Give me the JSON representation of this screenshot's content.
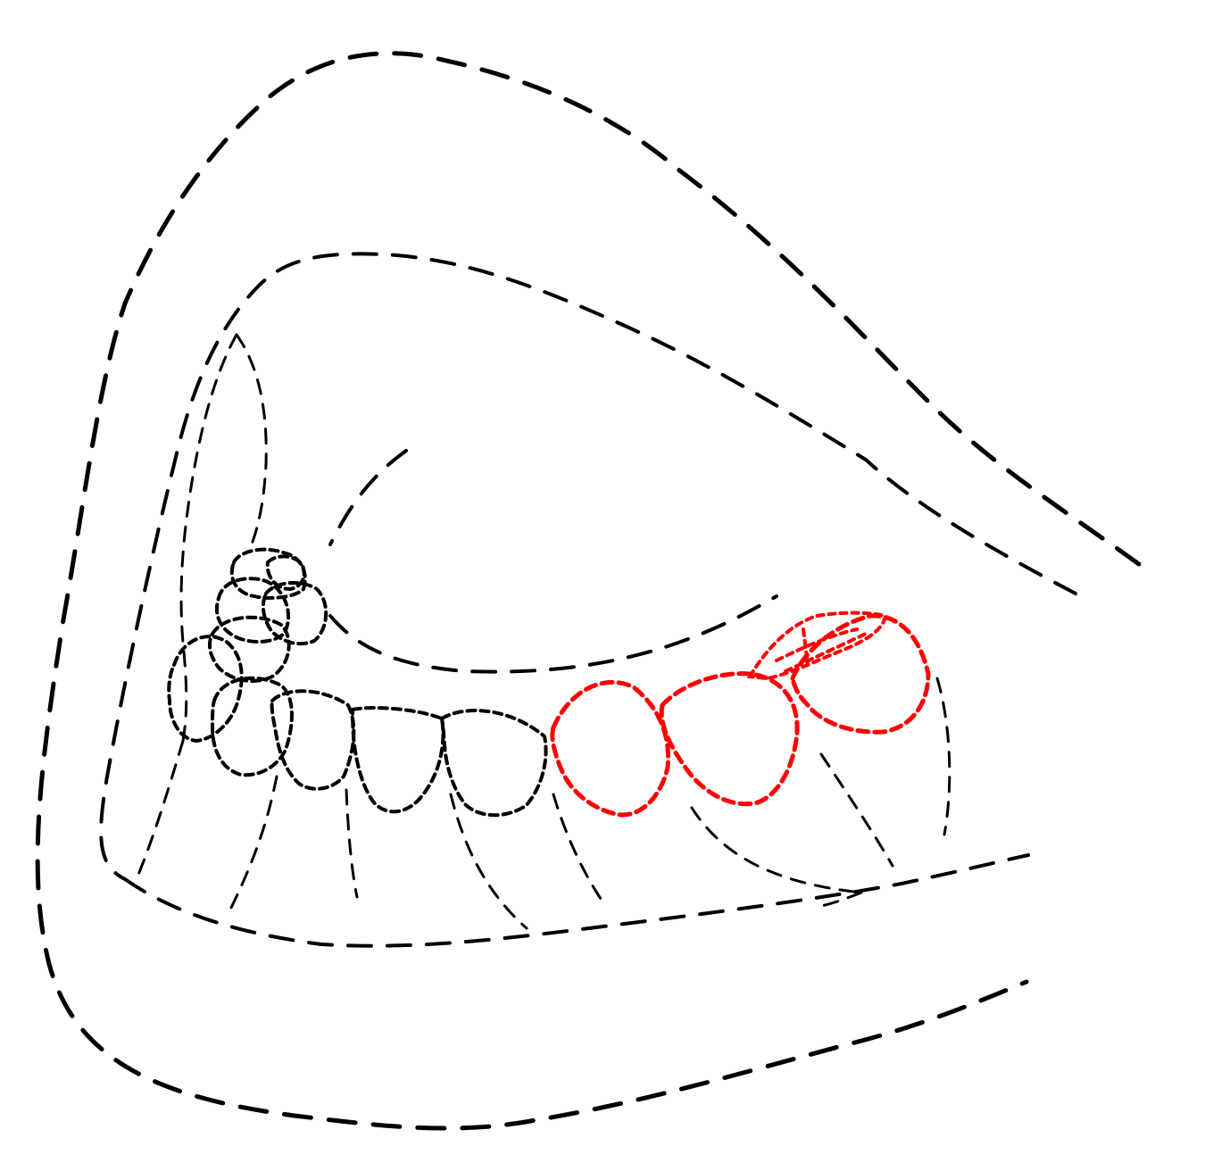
{
  "figure": {
    "description_visible_text": "",
    "highlight_color": "#ff0000",
    "line_color": "#000000",
    "background_color": "#ffffff"
  }
}
